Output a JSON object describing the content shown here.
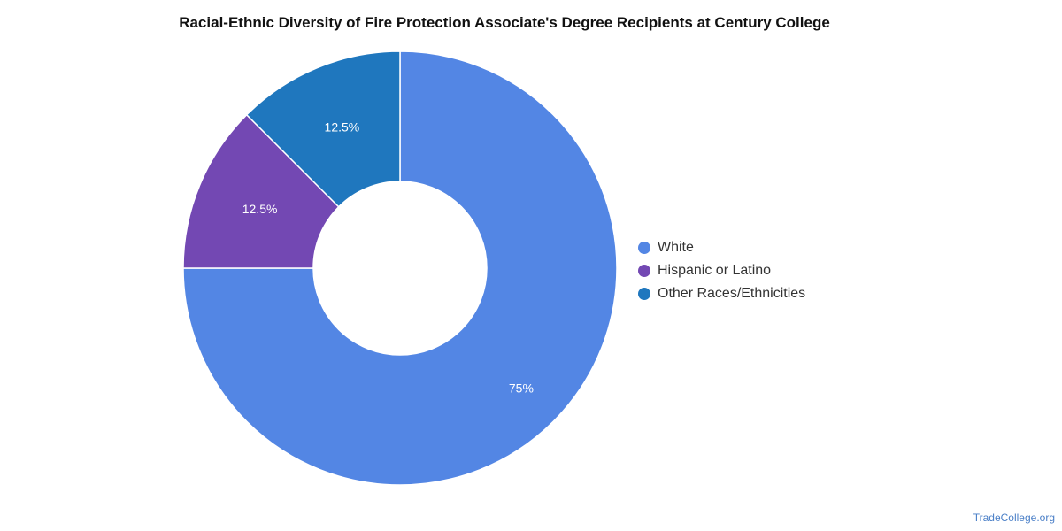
{
  "chart_data": {
    "type": "pie",
    "title": "Racial-Ethnic Diversity of Fire Protection Associate's Degree Recipients at Century College",
    "donut": true,
    "legend_position": "right",
    "slices": [
      {
        "name": "White",
        "value": 75,
        "label": "75%",
        "color": "#5386e4"
      },
      {
        "name": "Hispanic or Latino",
        "value": 12.5,
        "label": "12.5%",
        "color": "#7348b3"
      },
      {
        "name": "Other Races/Ethnicities",
        "value": 12.5,
        "label": "12.5%",
        "color": "#1f77be"
      }
    ]
  },
  "footer": {
    "watermark": "TradeCollege.org"
  }
}
